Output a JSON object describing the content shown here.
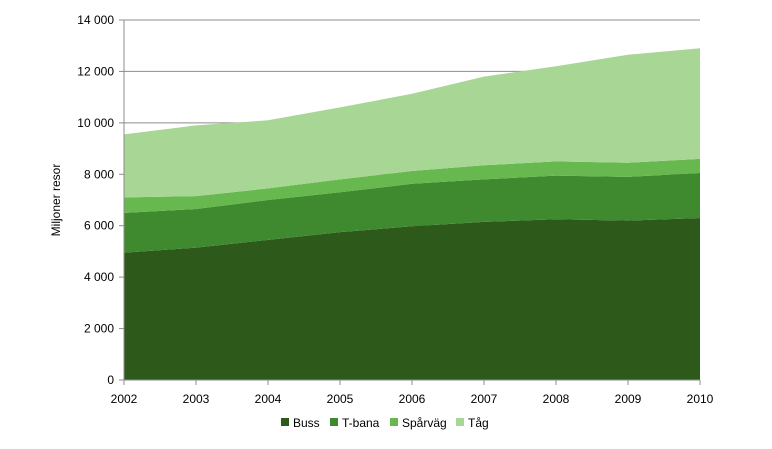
{
  "chart_data": {
    "type": "area",
    "stacked": true,
    "x": [
      2002,
      2003,
      2004,
      2005,
      2006,
      2007,
      2008,
      2009,
      2010
    ],
    "ylabel": "Miljoner resor",
    "xlabel": "",
    "ylim": [
      0,
      14000
    ],
    "yticks": [
      0,
      2000,
      4000,
      6000,
      8000,
      10000,
      12000,
      14000
    ],
    "ytick_labels": [
      "0",
      "2 000",
      "4 000",
      "6 000",
      "8 000",
      "10 000",
      "12 000",
      "14 000"
    ],
    "xtick_labels": [
      "2002",
      "2003",
      "2004",
      "2005",
      "2006",
      "2007",
      "2008",
      "2009",
      "2010"
    ],
    "grid": true,
    "legend_position": "bottom",
    "series": [
      {
        "name": "Buss",
        "color": "#2d5a1b",
        "values": [
          4950,
          5150,
          5450,
          5750,
          5980,
          6150,
          6250,
          6200,
          6300
        ]
      },
      {
        "name": "T-bana",
        "color": "#3f8a2e",
        "values": [
          1550,
          1500,
          1550,
          1550,
          1650,
          1650,
          1700,
          1700,
          1750
        ]
      },
      {
        "name": "Spårväg",
        "color": "#66b84f",
        "values": [
          600,
          500,
          450,
          500,
          500,
          550,
          550,
          550,
          550
        ]
      },
      {
        "name": "Tåg",
        "color": "#a7d695",
        "values": [
          2450,
          2750,
          2650,
          2800,
          3000,
          3450,
          3700,
          4200,
          4300
        ]
      }
    ]
  }
}
